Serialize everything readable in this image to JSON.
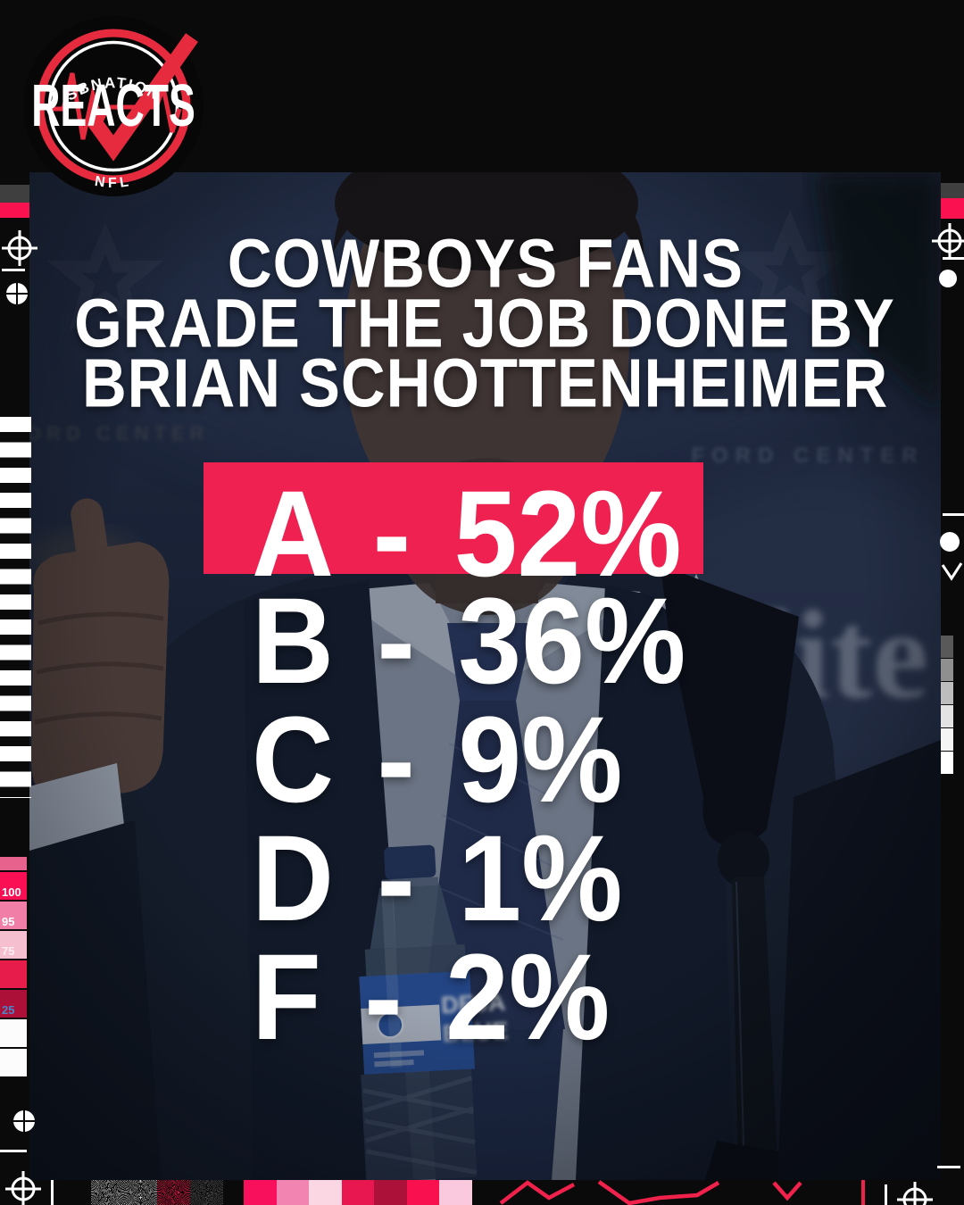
{
  "logo": {
    "arc_top": "SBNATION",
    "main": "REACTS",
    "arc_bottom": "NFL",
    "ring_color": "#e62b3f",
    "check_color": "#e62b3f"
  },
  "title": {
    "lines": [
      "COWBOYS FANS",
      "GRADE THE JOB DONE BY",
      "BRIAN SCHOTTENHEIMER"
    ]
  },
  "grades": [
    {
      "grade": "A",
      "dash": "-",
      "value": "52%",
      "highlight": true
    },
    {
      "grade": "B",
      "dash": "-",
      "value": "36%",
      "highlight": false
    },
    {
      "grade": "C",
      "dash": "-",
      "value": "9%",
      "highlight": false
    },
    {
      "grade": "D",
      "dash": "-",
      "value": "1%",
      "highlight": false
    },
    {
      "grade": "F",
      "dash": "-",
      "value": "2%",
      "highlight": false
    }
  ],
  "photo_text": {
    "backdrop_left": "FORD CENTER",
    "backdrop_right": "FORD CENTER",
    "beer_logo": "lite",
    "bottle_line1": "DEJA",
    "bottle_line2": "BLUE"
  },
  "colors": {
    "accent_red": "#ef2150",
    "strip_red": "#fa1150",
    "strip_gray": "#3f3f3f",
    "swatch_label_blue": "#4a86c8"
  },
  "left_strip": {
    "swatches": [
      {
        "color": "#fa0f55",
        "label": "100",
        "label_color": "#ffffff"
      },
      {
        "color": "#f07ea6",
        "label": "95",
        "label_color": "#ffffff"
      },
      {
        "color": "#f5bfd0",
        "label": "75",
        "label_color": "#fdeef4"
      },
      {
        "color": "#e81c4a",
        "label": "",
        "label_color": "#ffffff"
      },
      {
        "color": "#ac1039",
        "label": "25",
        "label_color": "#4a86c8"
      },
      {
        "color": "#fcfcfc",
        "label": "",
        "label_color": "#ffffff"
      },
      {
        "color": "#fcfcfc",
        "label": "",
        "label_color": "#ffffff"
      }
    ]
  },
  "bottom_strip": {
    "swatches": [
      "#f8105c",
      "#f284b2",
      "#fbd7e4",
      "#e8174f",
      "#ac1139",
      "#f8104f",
      "#fbc9dd"
    ]
  },
  "right_strip": {
    "grayscale": [
      "#595959",
      "#8f8f8f",
      "#bdbdbd",
      "#e3e3e3",
      "#f5f5f5",
      "#ffffff"
    ]
  },
  "chart_data": {
    "type": "table",
    "title": "Cowboys fans grade the job done by Brian Schottenheimer",
    "categories": [
      "A",
      "B",
      "C",
      "D",
      "F"
    ],
    "values": [
      52,
      36,
      9,
      1,
      2
    ],
    "unit": "%",
    "highlighted_category": "A",
    "legend_position": "none"
  }
}
